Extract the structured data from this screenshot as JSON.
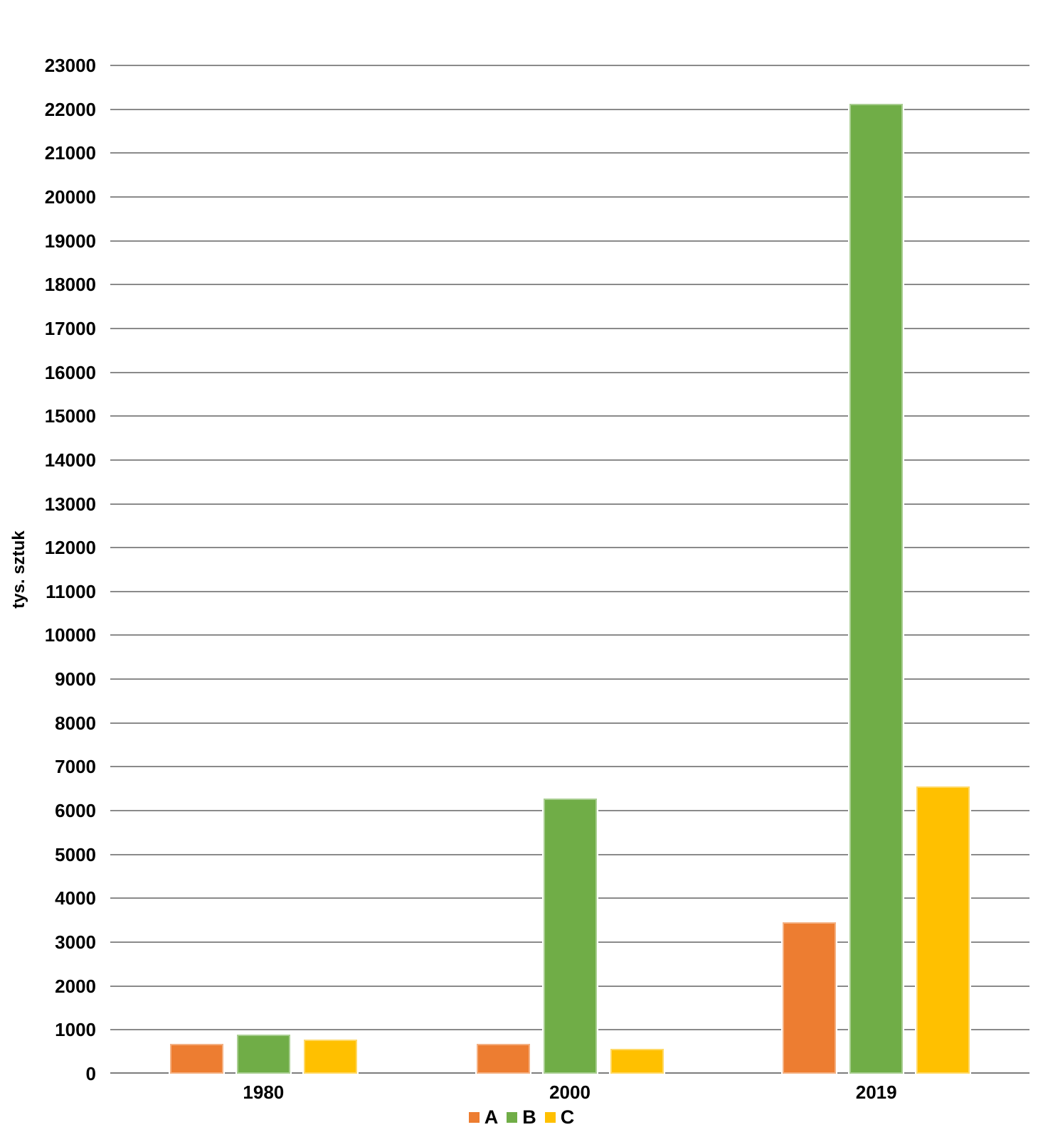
{
  "chart_data": {
    "type": "bar",
    "title": "",
    "xlabel": "",
    "ylabel": "tys. sztuk",
    "categories": [
      "1980",
      "2000",
      "2019"
    ],
    "series": [
      {
        "name": "A",
        "color": "#ED7D31",
        "values": [
          680,
          680,
          3450
        ]
      },
      {
        "name": "B",
        "color": "#70AD47",
        "values": [
          890,
          6280,
          22130
        ]
      },
      {
        "name": "C",
        "color": "#FFC000",
        "values": [
          780,
          560,
          6560
        ]
      }
    ],
    "ylim": [
      0,
      23000
    ],
    "y_step": 1000,
    "y_ticks": [
      0,
      1000,
      2000,
      3000,
      4000,
      5000,
      6000,
      7000,
      8000,
      9000,
      10000,
      11000,
      12000,
      13000,
      14000,
      15000,
      16000,
      17000,
      18000,
      19000,
      20000,
      21000,
      22000,
      23000
    ],
    "grid": true,
    "legend_position": "bottom",
    "legend_entries": [
      "A",
      "B",
      "C"
    ],
    "colors": {
      "gridline": "#8a8a8a",
      "axis_line": "#7c7c7c",
      "text": "#000000",
      "background": "#ffffff",
      "series_a": "#ED7D31",
      "series_b": "#70AD47",
      "series_c": "#FFC000"
    }
  }
}
